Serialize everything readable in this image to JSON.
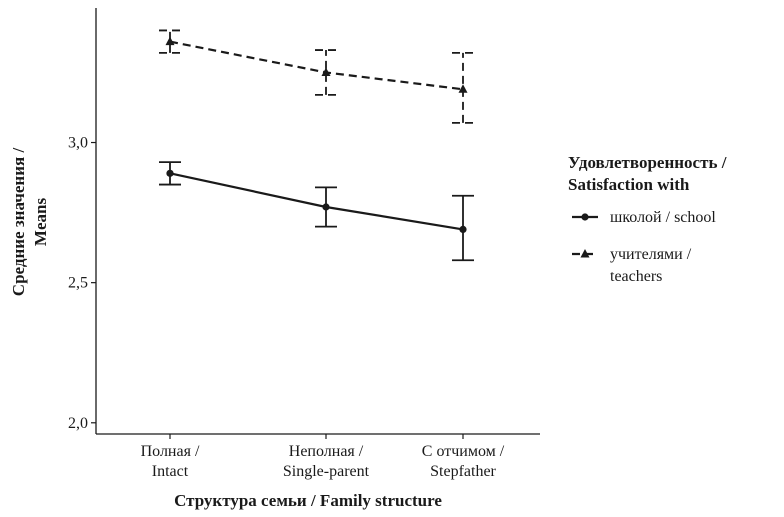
{
  "chart_data": {
    "type": "line",
    "xlabel": "Структура семьи / Family structure",
    "ylabel": [
      "Средние значения /",
      "Means"
    ],
    "categories": [
      [
        "Полная /",
        "Intact"
      ],
      [
        "Неполная /",
        "Single-parent"
      ],
      [
        "С отчимом /",
        "Stepfather"
      ]
    ],
    "y_ticks": [
      {
        "value": 2.0,
        "label": "2,0"
      },
      {
        "value": 2.5,
        "label": "2,5"
      },
      {
        "value": 3.0,
        "label": "3,0"
      }
    ],
    "ylim": [
      1.96,
      3.48
    ],
    "grid": false,
    "legend_position": "right",
    "legend_title": [
      "Удовлетворенность /",
      "Satisfaction with"
    ],
    "series": [
      {
        "name": "школой / school",
        "legend_label": [
          "школой / school"
        ],
        "style": "solid",
        "marker": "circle",
        "color": "#1a1a1a",
        "values": [
          2.89,
          2.77,
          2.69
        ],
        "ci_low": [
          2.85,
          2.7,
          2.58
        ],
        "ci_high": [
          2.93,
          2.84,
          2.81
        ]
      },
      {
        "name": "учителями / teachers",
        "legend_label": [
          "учителями /",
          "teachers"
        ],
        "style": "dashed",
        "marker": "triangle",
        "color": "#1a1a1a",
        "values": [
          3.36,
          3.25,
          3.19
        ],
        "ci_low": [
          3.32,
          3.17,
          3.07
        ],
        "ci_high": [
          3.4,
          3.33,
          3.32
        ]
      }
    ]
  }
}
